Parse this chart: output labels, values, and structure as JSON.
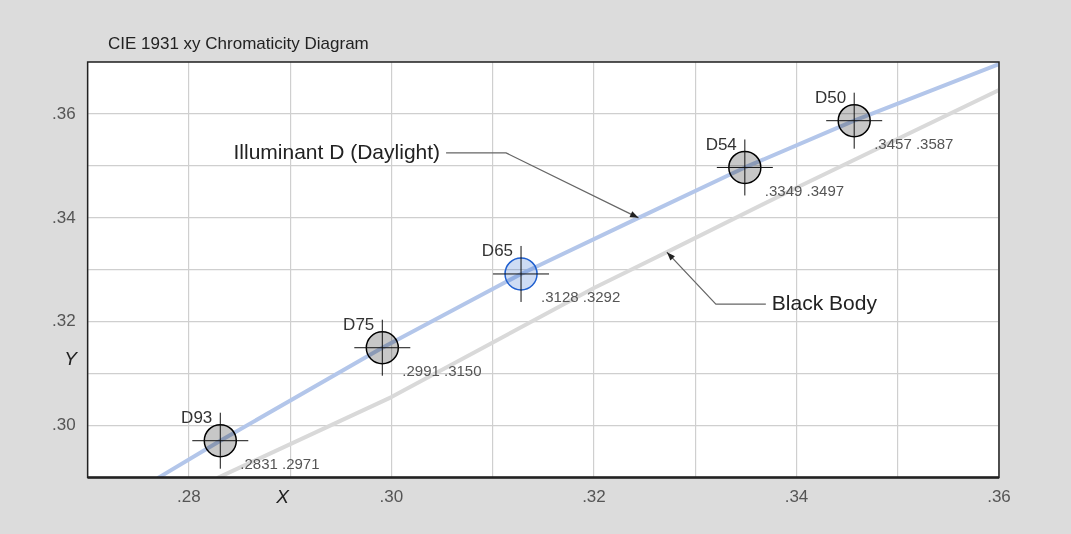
{
  "chart_data": {
    "type": "scatter",
    "title": "CIE 1931 xy Chromaticity Diagram",
    "xlabel": "X",
    "ylabel": "Y",
    "xlim": [
      0.27,
      0.36
    ],
    "ylim": [
      0.29,
      0.37
    ],
    "xticks": [
      {
        "value": 0.27,
        "label": null
      },
      {
        "value": 0.28,
        "label": ".28"
      },
      {
        "value": 0.29,
        "label": null
      },
      {
        "value": 0.3,
        "label": ".30"
      },
      {
        "value": 0.31,
        "label": null
      },
      {
        "value": 0.32,
        "label": ".32"
      },
      {
        "value": 0.33,
        "label": null
      },
      {
        "value": 0.34,
        "label": ".34"
      },
      {
        "value": 0.35,
        "label": null
      },
      {
        "value": 0.36,
        "label": ".36"
      }
    ],
    "yticks": [
      {
        "value": 0.29,
        "label": null
      },
      {
        "value": 0.3,
        "label": ".30"
      },
      {
        "value": 0.31,
        "label": null
      },
      {
        "value": 0.32,
        "label": ".32"
      },
      {
        "value": 0.33,
        "label": null
      },
      {
        "value": 0.34,
        "label": ".34"
      },
      {
        "value": 0.35,
        "label": null
      },
      {
        "value": 0.36,
        "label": ".36"
      },
      {
        "value": 0.37,
        "label": null
      }
    ],
    "grid": true,
    "legend": false,
    "series": [
      {
        "type": "line",
        "color": "#b3c6ea",
        "x": [
          0.277,
          0.2831,
          0.2991,
          0.3128,
          0.3244,
          0.3349,
          0.3457,
          0.36
        ],
        "values": [
          0.29,
          0.2971,
          0.315,
          0.3292,
          0.34,
          0.3497,
          0.3587,
          0.3696
        ]
      },
      {
        "type": "line",
        "color": "#d9d9d9",
        "x": [
          0.2829,
          0.3,
          0.32,
          0.3272,
          0.34,
          0.36
        ],
        "values": [
          0.29,
          0.3055,
          0.3265,
          0.3334,
          0.3458,
          0.3646
        ]
      },
      {
        "marker": "circle",
        "x": [
          0.2831,
          0.2991,
          0.3128,
          0.3349,
          0.3457
        ],
        "values": [
          0.2971,
          0.315,
          0.3292,
          0.3497,
          0.3587
        ],
        "colors": [
          "#000000",
          "#000000",
          "#1f5fcf",
          "#000000",
          "#000000"
        ],
        "value_labels": [
          ".2831 .2971",
          ".2991 .3150",
          ".3128 .3292",
          ".3349 .3497",
          ".3457 .3587"
        ]
      }
    ],
    "annotations": [
      {
        "text": "D93",
        "x": 0.2831,
        "y": 0.2971
      },
      {
        "text": "D75",
        "x": 0.2991,
        "y": 0.315
      },
      {
        "text": "D65",
        "x": 0.3128,
        "y": 0.3292
      },
      {
        "text": "D54",
        "x": 0.3349,
        "y": 0.3497
      },
      {
        "text": "D50",
        "x": 0.3457,
        "y": 0.3587
      },
      {
        "text": "Illuminant D (Daylight)",
        "x": 0.3244,
        "y": 0.34
      },
      {
        "text": "Black Body",
        "x": 0.3272,
        "y": 0.3334
      }
    ]
  }
}
